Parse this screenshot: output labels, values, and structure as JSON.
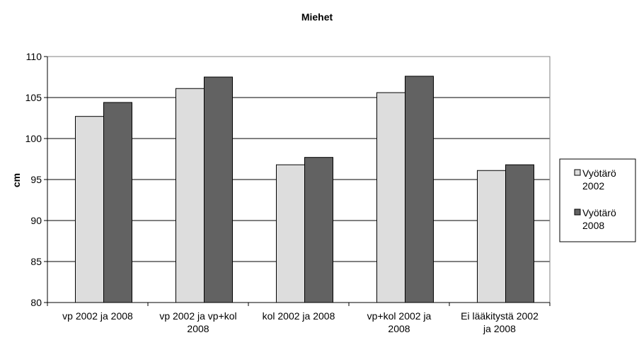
{
  "chart_data": {
    "type": "bar",
    "title": "Miehet",
    "xlabel": "",
    "ylabel": "cm",
    "ylim": [
      80,
      110
    ],
    "yticks": [
      80,
      85,
      90,
      95,
      100,
      105,
      110
    ],
    "grid": true,
    "legend_position": "right",
    "categories": [
      [
        "vp 2002 ja 2008"
      ],
      [
        "vp 2002 ja vp+kol",
        "2008"
      ],
      [
        "kol 2002 ja 2008"
      ],
      [
        "vp+kol 2002 ja",
        "2008"
      ],
      [
        "Ei lääkitystä 2002",
        "ja 2008"
      ]
    ],
    "series": [
      {
        "name": [
          "Vyötärö",
          "2002"
        ],
        "color": "#dddddd",
        "values": [
          102.7,
          106.1,
          96.8,
          105.6,
          96.1
        ]
      },
      {
        "name": [
          "Vyötärö",
          "2008"
        ],
        "color": "#626262",
        "values": [
          104.4,
          107.5,
          97.7,
          107.6,
          96.8
        ]
      }
    ]
  }
}
